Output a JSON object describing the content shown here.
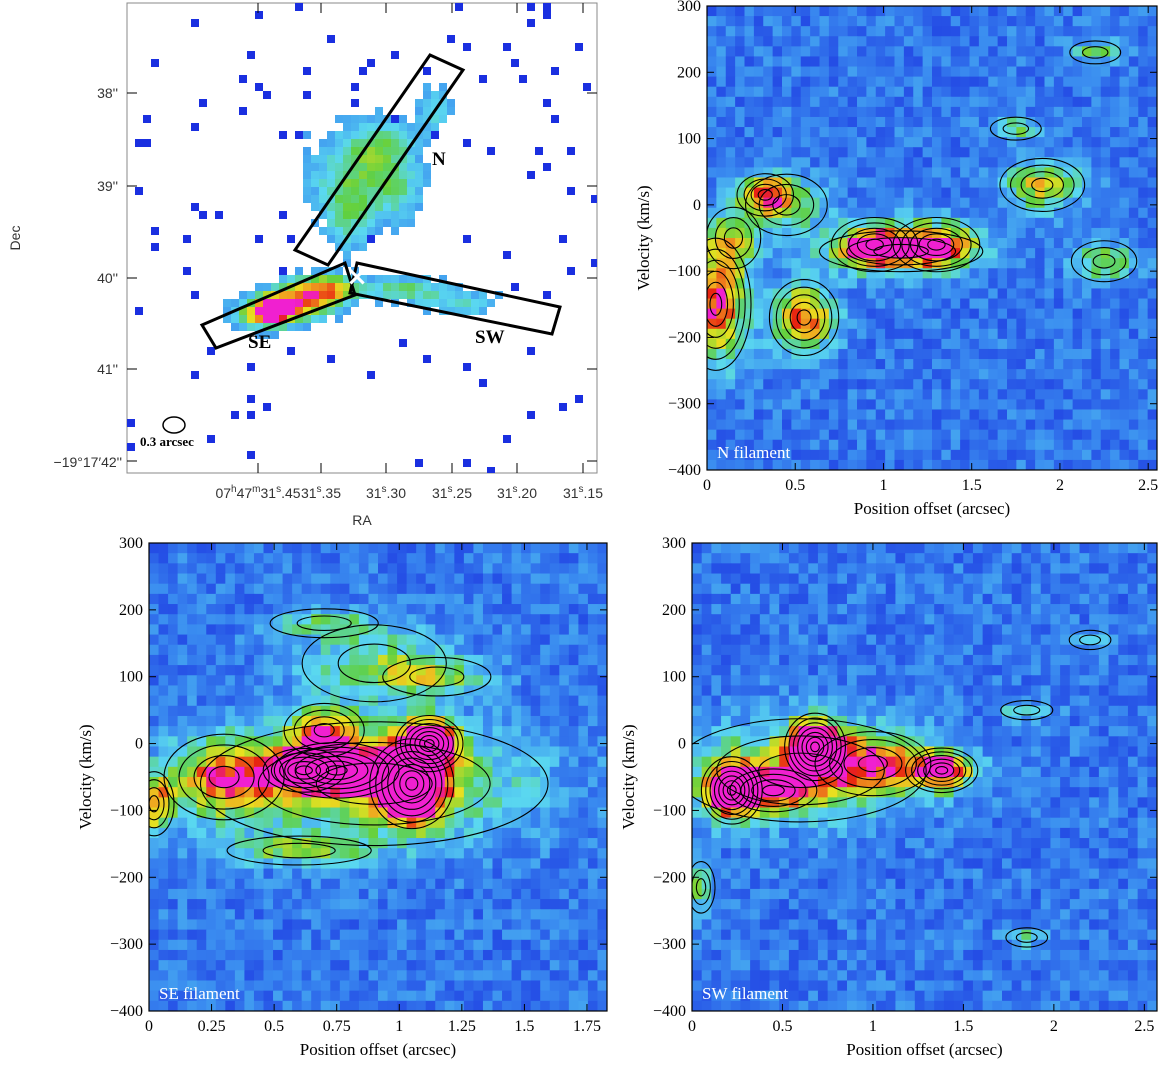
{
  "panels": {
    "map": {
      "xlabel": "RA",
      "ylabel": "Dec",
      "xticks": [
        "07h47m31s.45",
        "31s.35",
        "31s.30",
        "31s.25",
        "31s.20",
        "31s.15"
      ],
      "xticks_display": [
        {
          "main": "07",
          "sup1": "h",
          "mid": "47",
          "sup2": "m",
          "tail": "31",
          "sup3": "s",
          "end": ".45"
        },
        {
          "main": "31",
          "sup3": "s",
          "end": ".35"
        },
        {
          "main": "31",
          "sup3": "s",
          "end": ".30"
        },
        {
          "main": "31",
          "sup3": "s",
          "end": ".25"
        },
        {
          "main": "31",
          "sup3": "s",
          "end": ".20"
        },
        {
          "main": "31",
          "sup3": "s",
          "end": ".15"
        }
      ],
      "yticks": [
        "38''",
        "39''",
        "40''",
        "41''",
        "−19°17′42''"
      ],
      "labels": {
        "n": "N",
        "se": "SE",
        "sw": "SW",
        "beam": "0.3 arcsec"
      },
      "center_marker": "×"
    },
    "pv": [
      {
        "name": "N filament",
        "xlabel": "Position offset (arcsec)",
        "ylabel": "Velocity (km/s)",
        "xticks": [
          "0",
          "0.5",
          "1",
          "1.5",
          "2",
          "2.5"
        ],
        "xtick_values": [
          0,
          0.5,
          1,
          1.5,
          2,
          2.5
        ],
        "xmax": 2.55,
        "yticks": [
          "300",
          "200",
          "100",
          "0",
          "−100",
          "−200",
          "−300",
          "−400"
        ],
        "ylim": [
          -400,
          300
        ]
      },
      {
        "name": "SE filament",
        "xlabel": "Position offset (arcsec)",
        "ylabel": "Velocity (km/s)",
        "xticks": [
          "0",
          "0.25",
          "0.5",
          "0.75",
          "1",
          "1.25",
          "1.5",
          "1.75"
        ],
        "xtick_values": [
          0,
          0.25,
          0.5,
          0.75,
          1,
          1.25,
          1.5,
          1.75
        ],
        "xmax": 1.83,
        "yticks": [
          "300",
          "200",
          "100",
          "0",
          "−100",
          "−200",
          "−300",
          "−400"
        ],
        "ylim": [
          -400,
          300
        ]
      },
      {
        "name": "SW filament",
        "xlabel": "Position offset (arcsec)",
        "ylabel": "Velocity (km/s)",
        "xticks": [
          "0",
          "0.5",
          "1",
          "1.5",
          "2",
          "2.5"
        ],
        "xtick_values": [
          0,
          0.5,
          1,
          1.5,
          2,
          2.5
        ],
        "xmax": 2.57,
        "yticks": [
          "300",
          "200",
          "100",
          "0",
          "−100",
          "−200",
          "−300",
          "−400"
        ],
        "ylim": [
          -400,
          300
        ]
      }
    ]
  },
  "colors": {
    "background": "#1a2fe0",
    "blue_light": "#3a8cf0",
    "cyan": "#5ad8f0",
    "green": "#60d040",
    "yellow": "#e8e020",
    "orange": "#f0a020",
    "red": "#e82010",
    "magenta": "#f020d0",
    "contour": "#000000"
  }
}
